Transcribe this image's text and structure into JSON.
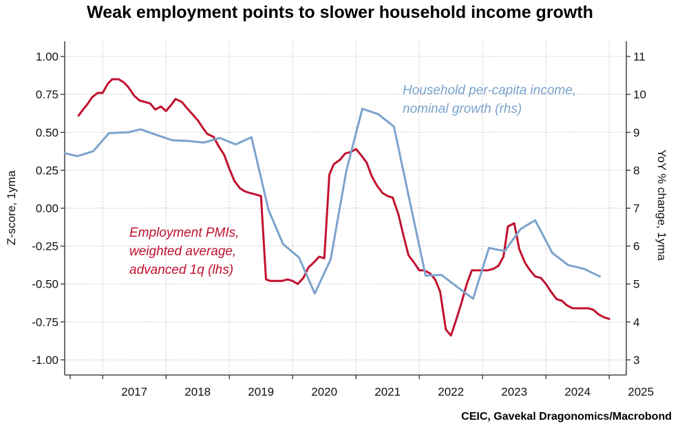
{
  "title": "Weak employment points to slower household income growth",
  "source": "CEIC, Gavekal Dragonomics/Macrobond",
  "colors": {
    "red": "#c0102e",
    "blue": "#7ba3cc",
    "grid": "#c8c8c8",
    "axis": "#222222"
  },
  "chart_data": {
    "type": "line",
    "ylabel": "Z-score, 1yma",
    "y2label": "YoY % change, 1yma",
    "ylim": [
      -1.1,
      1.1
    ],
    "y2lim": [
      2.6,
      11.4
    ],
    "xlim": [
      2016.4,
      2025.27
    ],
    "yticks": [
      "1.00",
      "0.75",
      "0.50",
      "0.25",
      "0.00",
      "-0.25",
      "-0.50",
      "-0.75",
      "-1.00"
    ],
    "y2ticks": [
      "11",
      "10",
      "9",
      "8",
      "7",
      "6",
      "5",
      "4",
      "3"
    ],
    "xticks": [
      "2017",
      "2018",
      "2019",
      "2020",
      "2021",
      "2022",
      "2023",
      "2024",
      "2025"
    ],
    "grid": true,
    "series": [
      {
        "name": "Employment PMIs, weighted average, advanced 1q (lhs)",
        "name_lines": [
          "Employment PMIs,",
          "weighted average,",
          "advanced 1q (lhs)"
        ],
        "axis": "left",
        "color": "#c0102e",
        "points": [
          [
            2016.62,
            0.61
          ],
          [
            2016.69,
            0.65
          ],
          [
            2016.75,
            0.68
          ],
          [
            2016.83,
            0.73
          ],
          [
            2016.92,
            0.76
          ],
          [
            2017.0,
            0.76
          ],
          [
            2017.08,
            0.82
          ],
          [
            2017.15,
            0.85
          ],
          [
            2017.25,
            0.85
          ],
          [
            2017.33,
            0.83
          ],
          [
            2017.4,
            0.8
          ],
          [
            2017.5,
            0.74
          ],
          [
            2017.58,
            0.71
          ],
          [
            2017.67,
            0.7
          ],
          [
            2017.75,
            0.69
          ],
          [
            2017.83,
            0.65
          ],
          [
            2017.92,
            0.67
          ],
          [
            2018.0,
            0.64
          ],
          [
            2018.08,
            0.68
          ],
          [
            2018.15,
            0.72
          ],
          [
            2018.25,
            0.7
          ],
          [
            2018.33,
            0.66
          ],
          [
            2018.5,
            0.58
          ],
          [
            2018.58,
            0.53
          ],
          [
            2018.65,
            0.49
          ],
          [
            2018.75,
            0.47
          ],
          [
            2018.83,
            0.41
          ],
          [
            2018.92,
            0.35
          ],
          [
            2019.0,
            0.26
          ],
          [
            2019.08,
            0.18
          ],
          [
            2019.17,
            0.13
          ],
          [
            2019.25,
            0.11
          ],
          [
            2019.33,
            0.1
          ],
          [
            2019.42,
            0.09
          ],
          [
            2019.5,
            0.08
          ],
          [
            2019.58,
            -0.47
          ],
          [
            2019.65,
            -0.48
          ],
          [
            2019.75,
            -0.48
          ],
          [
            2019.83,
            -0.48
          ],
          [
            2019.92,
            -0.47
          ],
          [
            2020.0,
            -0.48
          ],
          [
            2020.08,
            -0.5
          ],
          [
            2020.17,
            -0.46
          ],
          [
            2020.25,
            -0.39
          ],
          [
            2020.33,
            -0.36
          ],
          [
            2020.42,
            -0.32
          ],
          [
            2020.5,
            -0.33
          ],
          [
            2020.58,
            0.22
          ],
          [
            2020.65,
            0.29
          ],
          [
            2020.75,
            0.32
          ],
          [
            2020.83,
            0.36
          ],
          [
            2020.92,
            0.37
          ],
          [
            2021.0,
            0.39
          ],
          [
            2021.08,
            0.35
          ],
          [
            2021.17,
            0.3
          ],
          [
            2021.25,
            0.21
          ],
          [
            2021.33,
            0.15
          ],
          [
            2021.42,
            0.1
          ],
          [
            2021.5,
            0.08
          ],
          [
            2021.58,
            0.07
          ],
          [
            2021.67,
            -0.04
          ],
          [
            2021.75,
            -0.18
          ],
          [
            2021.83,
            -0.31
          ],
          [
            2021.92,
            -0.36
          ],
          [
            2022.0,
            -0.41
          ],
          [
            2022.08,
            -0.41
          ],
          [
            2022.17,
            -0.43
          ],
          [
            2022.25,
            -0.47
          ],
          [
            2022.33,
            -0.55
          ],
          [
            2022.42,
            -0.8
          ],
          [
            2022.5,
            -0.84
          ],
          [
            2022.58,
            -0.74
          ],
          [
            2022.67,
            -0.62
          ],
          [
            2022.75,
            -0.5
          ],
          [
            2022.83,
            -0.41
          ],
          [
            2022.92,
            -0.41
          ],
          [
            2023.0,
            -0.41
          ],
          [
            2023.08,
            -0.41
          ],
          [
            2023.17,
            -0.4
          ],
          [
            2023.25,
            -0.38
          ],
          [
            2023.33,
            -0.32
          ],
          [
            2023.4,
            -0.12
          ],
          [
            2023.5,
            -0.1
          ],
          [
            2023.58,
            -0.27
          ],
          [
            2023.67,
            -0.36
          ],
          [
            2023.75,
            -0.41
          ],
          [
            2023.83,
            -0.45
          ],
          [
            2023.92,
            -0.46
          ],
          [
            2024.0,
            -0.5
          ],
          [
            2024.08,
            -0.55
          ],
          [
            2024.17,
            -0.6
          ],
          [
            2024.25,
            -0.61
          ],
          [
            2024.33,
            -0.64
          ],
          [
            2024.42,
            -0.66
          ],
          [
            2024.5,
            -0.66
          ],
          [
            2024.58,
            -0.66
          ],
          [
            2024.67,
            -0.66
          ],
          [
            2024.75,
            -0.67
          ],
          [
            2024.83,
            -0.7
          ],
          [
            2024.92,
            -0.72
          ],
          [
            2025.0,
            -0.73
          ]
        ]
      },
      {
        "name": "Household per-capita income, nominal growth (rhs)",
        "name_lines": [
          "Household per-capita income,",
          "nominal growth (rhs)"
        ],
        "axis": "right",
        "color": "#7ba3cc",
        "points": [
          [
            2016.4,
            8.45
          ],
          [
            2016.6,
            8.37
          ],
          [
            2016.85,
            8.5
          ],
          [
            2017.1,
            8.98
          ],
          [
            2017.4,
            9.0
          ],
          [
            2017.6,
            9.08
          ],
          [
            2017.85,
            8.93
          ],
          [
            2018.1,
            8.79
          ],
          [
            2018.35,
            8.77
          ],
          [
            2018.6,
            8.73
          ],
          [
            2018.85,
            8.85
          ],
          [
            2019.1,
            8.68
          ],
          [
            2019.35,
            8.87
          ],
          [
            2019.62,
            6.95
          ],
          [
            2019.85,
            6.05
          ],
          [
            2020.1,
            5.7
          ],
          [
            2020.35,
            4.75
          ],
          [
            2020.6,
            5.65
          ],
          [
            2020.85,
            8.0
          ],
          [
            2021.1,
            9.62
          ],
          [
            2021.35,
            9.48
          ],
          [
            2021.6,
            9.15
          ],
          [
            2021.85,
            7.18
          ],
          [
            2022.1,
            5.22
          ],
          [
            2022.35,
            5.24
          ],
          [
            2022.6,
            4.92
          ],
          [
            2022.85,
            4.61
          ],
          [
            2023.1,
            5.95
          ],
          [
            2023.35,
            5.87
          ],
          [
            2023.6,
            6.45
          ],
          [
            2023.83,
            6.68
          ],
          [
            2024.1,
            5.82
          ],
          [
            2024.35,
            5.5
          ],
          [
            2024.6,
            5.4
          ],
          [
            2024.85,
            5.2
          ]
        ]
      }
    ]
  }
}
